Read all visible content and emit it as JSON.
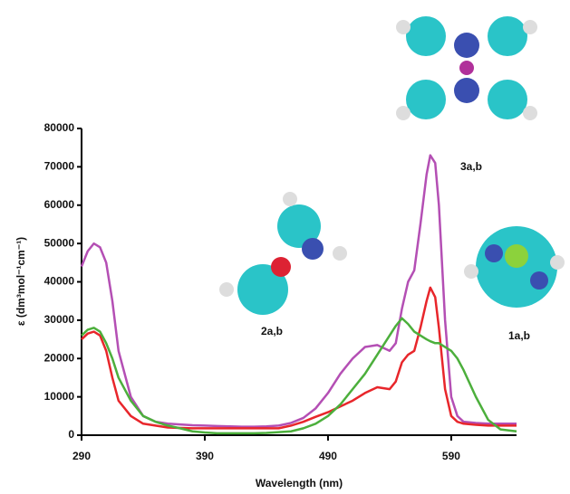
{
  "chart_data": {
    "type": "line",
    "x_label": "Wavelength (nm)",
    "y_label": "ε (dm³mol⁻¹cm⁻¹)",
    "annotations": [
      "3a,b",
      "2a,b",
      "1a,b"
    ],
    "x": [
      290,
      295,
      300,
      305,
      310,
      315,
      320,
      330,
      340,
      350,
      360,
      370,
      380,
      390,
      400,
      410,
      420,
      430,
      440,
      450,
      460,
      470,
      480,
      490,
      500,
      510,
      520,
      530,
      540,
      545,
      550,
      555,
      560,
      565,
      570,
      573,
      577,
      580,
      585,
      590,
      595,
      600,
      610,
      620,
      630,
      643
    ],
    "series": [
      {
        "color": "#b44fb4",
        "values": [
          44000,
          48000,
          50000,
          49000,
          45000,
          35000,
          22000,
          10000,
          5000,
          3500,
          3000,
          2800,
          2600,
          2500,
          2400,
          2300,
          2200,
          2200,
          2300,
          2500,
          3200,
          4500,
          7000,
          11000,
          16000,
          20000,
          23000,
          23500,
          22000,
          24000,
          33000,
          40000,
          43000,
          55000,
          68000,
          73000,
          71000,
          60000,
          30000,
          10000,
          5000,
          3500,
          3200,
          3000,
          3000,
          3000
        ]
      },
      {
        "color": "#e8262b",
        "values": [
          25000,
          26500,
          27000,
          26000,
          22000,
          15000,
          9000,
          5000,
          3000,
          2500,
          2000,
          1900,
          1800,
          1800,
          1800,
          1800,
          1800,
          1800,
          1800,
          1800,
          2500,
          3500,
          4800,
          6000,
          7500,
          9000,
          11000,
          12500,
          12000,
          14000,
          19000,
          21000,
          22000,
          28000,
          35000,
          38500,
          36000,
          28000,
          12000,
          5000,
          3500,
          3000,
          2700,
          2500,
          2500,
          2500
        ]
      },
      {
        "color": "#4caf3c",
        "values": [
          26000,
          27500,
          28000,
          27000,
          24000,
          20000,
          15000,
          9000,
          5000,
          3500,
          2500,
          1800,
          1000,
          700,
          500,
          500,
          500,
          500,
          600,
          800,
          1000,
          1800,
          3000,
          5000,
          8000,
          12000,
          16000,
          21000,
          26000,
          28500,
          30500,
          29000,
          27000,
          26000,
          25000,
          24500,
          24000,
          24000,
          23000,
          22000,
          20000,
          17000,
          10000,
          4000,
          1500,
          1000
        ]
      }
    ],
    "xlim": [
      290,
      643
    ],
    "xticks": [
      290,
      390,
      490,
      590
    ],
    "ylim": [
      0,
      80000
    ],
    "yticks": [
      0,
      10000,
      20000,
      30000,
      40000,
      50000,
      60000,
      70000,
      80000
    ]
  }
}
